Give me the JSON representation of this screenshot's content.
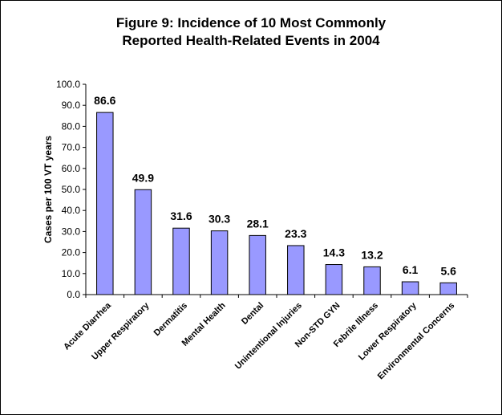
{
  "chart_data": {
    "type": "bar",
    "title": "Figure 9: Incidence of 10 Most Commonly Reported Health-Related Events in 2004",
    "title_lines": [
      "Figure 9: Incidence of 10 Most Commonly",
      "Reported Health-Related Events in 2004"
    ],
    "xlabel": "",
    "ylabel": "Cases per 100 VT years",
    "ylim": [
      0,
      100
    ],
    "ytick_step": 10,
    "ytick_labels": [
      "0.0",
      "10.0",
      "20.0",
      "30.0",
      "40.0",
      "50.0",
      "60.0",
      "70.0",
      "80.0",
      "90.0",
      "100.0"
    ],
    "categories": [
      "Acute Diarrhea",
      "Upper Respiratory",
      "Dermatitis",
      "Mental Health",
      "Dental",
      "Unintentional Injuries",
      "Non-STD GYN",
      "Febrile Illness",
      "Lower Respiratory",
      "Environmental Concerns"
    ],
    "values": [
      86.6,
      49.9,
      31.6,
      30.3,
      28.1,
      23.3,
      14.3,
      13.2,
      6.1,
      5.6
    ],
    "data_labels": [
      "86.6",
      "49.9",
      "31.6",
      "30.3",
      "28.1",
      "23.3",
      "14.3",
      "13.2",
      "6.1",
      "5.6"
    ],
    "grid": false,
    "legend": "none",
    "colors": {
      "bar_fill": "#9999ff",
      "bar_stroke": "#000000",
      "axis": "#000000"
    }
  }
}
